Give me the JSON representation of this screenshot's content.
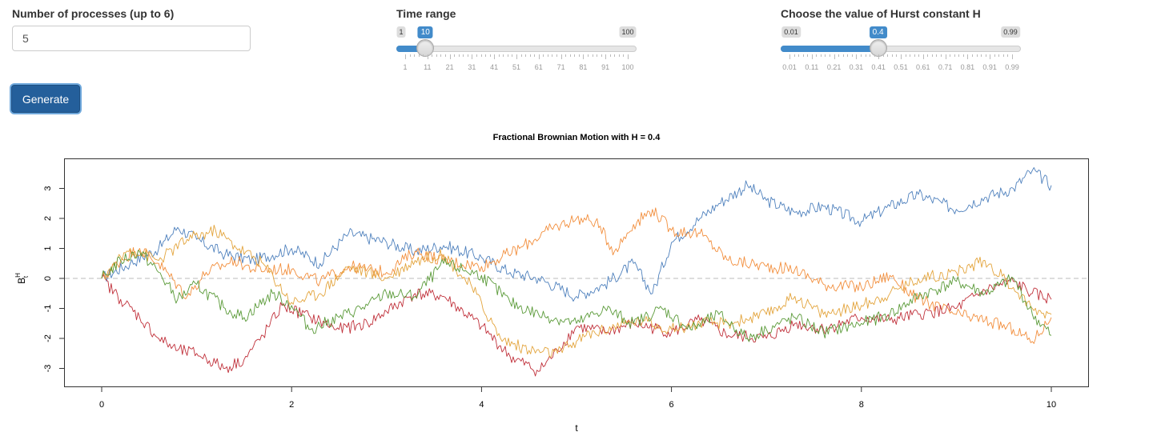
{
  "controls": {
    "processes": {
      "label": "Number of processes (up to 6)",
      "value": "5"
    },
    "time_range": {
      "label": "Time range",
      "min": 1,
      "max": 100,
      "value": 10,
      "min_label": "1",
      "max_label": "100",
      "value_label": "10",
      "ticks": [
        "1",
        "11",
        "21",
        "31",
        "41",
        "51",
        "61",
        "71",
        "81",
        "91",
        "100"
      ]
    },
    "hurst": {
      "label": "Choose the value of Hurst constant H",
      "min": 0.01,
      "max": 0.99,
      "value": 0.4,
      "min_label": "0.01",
      "max_label": "0.99",
      "value_label": "0.4",
      "ticks": [
        "0.01",
        "0.11",
        "0.21",
        "0.31",
        "0.41",
        "0.51",
        "0.61",
        "0.71",
        "0.81",
        "0.91",
        "0.99"
      ]
    },
    "generate_label": "Generate",
    "accent": "#428bca"
  },
  "chart_data": {
    "type": "line",
    "title": "Fractional Brownian Motion with H = 0.4",
    "xlabel": "t",
    "ylabel": "B",
    "xlim": [
      0,
      10
    ],
    "ylim": [
      -3.6,
      4.0
    ],
    "xticks": [
      0,
      2,
      4,
      6,
      8,
      10
    ],
    "yticks": [
      -3,
      -2,
      -1,
      0,
      1,
      2,
      3
    ],
    "reference_line": 0,
    "series": [
      {
        "color": "#4f81bd",
        "x": [
          0,
          0.3,
          0.6,
          0.8,
          1.0,
          1.3,
          1.6,
          2.0,
          2.3,
          2.6,
          3.0,
          3.3,
          3.6,
          4.0,
          4.3,
          4.6,
          5.0,
          5.3,
          5.6,
          5.8,
          6.0,
          6.3,
          6.5,
          6.8,
          7.0,
          7.3,
          7.6,
          8.0,
          8.3,
          8.6,
          9.0,
          9.3,
          9.6,
          9.8,
          10.0
        ],
        "y": [
          0.0,
          0.5,
          1.0,
          1.7,
          1.3,
          0.8,
          0.6,
          1.0,
          0.5,
          1.5,
          1.2,
          0.9,
          1.1,
          0.7,
          0.2,
          0.0,
          -0.6,
          -0.2,
          0.5,
          -0.5,
          1.2,
          2.0,
          2.5,
          3.1,
          2.6,
          2.2,
          2.4,
          1.9,
          2.4,
          2.8,
          2.3,
          2.7,
          3.0,
          3.6,
          3.1
        ]
      },
      {
        "color": "#f28e3c",
        "x": [
          0,
          0.2,
          0.4,
          0.6,
          0.9,
          1.1,
          1.4,
          1.6,
          2.0,
          2.3,
          2.6,
          3.0,
          3.3,
          3.6,
          4.0,
          4.4,
          4.7,
          5.0,
          5.2,
          5.4,
          5.6,
          5.8,
          6.0,
          6.3,
          6.6,
          7.0,
          7.3,
          7.6,
          8.0,
          8.3,
          8.6,
          9.0,
          9.3,
          9.6,
          9.8,
          10.0
        ],
        "y": [
          0.0,
          0.6,
          1.0,
          0.5,
          -0.6,
          0.2,
          0.6,
          0.3,
          0.3,
          -0.1,
          0.4,
          0.2,
          0.9,
          0.6,
          0.4,
          1.0,
          1.6,
          2.0,
          1.9,
          0.9,
          1.8,
          2.3,
          1.6,
          1.5,
          0.6,
          0.4,
          0.3,
          -0.2,
          -0.3,
          0.1,
          -0.7,
          -1.2,
          -1.4,
          -1.7,
          -2.1,
          -1.3
        ]
      },
      {
        "color": "#c0303a",
        "x": [
          0,
          0.2,
          0.4,
          0.6,
          0.8,
          1.0,
          1.3,
          1.5,
          1.7,
          1.9,
          2.2,
          2.5,
          2.8,
          3.0,
          3.3,
          3.6,
          4.0,
          4.3,
          4.6,
          4.8,
          5.0,
          5.3,
          5.6,
          6.0,
          6.3,
          6.6,
          7.0,
          7.3,
          7.6,
          8.0,
          8.3,
          8.6,
          9.0,
          9.3,
          9.6,
          9.8,
          10.0
        ],
        "y": [
          0.0,
          -0.7,
          -1.3,
          -2.0,
          -2.4,
          -2.5,
          -3.0,
          -2.7,
          -1.9,
          -0.9,
          -1.3,
          -1.7,
          -1.5,
          -1.1,
          -0.5,
          -0.6,
          -1.6,
          -2.6,
          -3.1,
          -2.4,
          -1.6,
          -1.8,
          -1.5,
          -1.8,
          -1.4,
          -1.9,
          -2.0,
          -1.5,
          -1.7,
          -1.3,
          -1.4,
          -1.2,
          -1.0,
          -0.4,
          -0.1,
          -0.5,
          -0.7
        ]
      },
      {
        "color": "#e3a43c",
        "x": [
          0,
          0.3,
          0.6,
          0.9,
          1.2,
          1.4,
          1.7,
          2.0,
          2.3,
          2.6,
          3.0,
          3.3,
          3.6,
          3.9,
          4.2,
          4.5,
          4.8,
          5.1,
          5.4,
          5.7,
          6.0,
          6.3,
          6.6,
          7.0,
          7.3,
          7.6,
          8.0,
          8.3,
          8.6,
          9.0,
          9.3,
          9.6,
          9.8,
          10.0
        ],
        "y": [
          0.0,
          1.0,
          0.6,
          1.3,
          1.6,
          1.1,
          0.5,
          -0.8,
          -0.5,
          0.4,
          0.0,
          0.6,
          0.8,
          -0.3,
          -2.0,
          -2.4,
          -2.5,
          -1.9,
          -1.6,
          -1.4,
          -1.7,
          -1.5,
          -1.5,
          -1.2,
          -0.6,
          -1.2,
          -0.9,
          -0.5,
          0.0,
          0.2,
          0.6,
          -0.3,
          -1.0,
          -1.2
        ]
      },
      {
        "color": "#5a9a38",
        "x": [
          0,
          0.2,
          0.4,
          0.6,
          0.8,
          1.0,
          1.3,
          1.5,
          1.8,
          2.0,
          2.2,
          2.5,
          2.8,
          3.0,
          3.3,
          3.6,
          4.0,
          4.3,
          4.6,
          5.0,
          5.3,
          5.6,
          5.9,
          6.2,
          6.5,
          6.8,
          7.0,
          7.3,
          7.6,
          8.0,
          8.3,
          8.6,
          9.0,
          9.3,
          9.6,
          9.8,
          10.0
        ],
        "y": [
          0.0,
          0.6,
          0.9,
          0.2,
          -0.7,
          -0.2,
          -1.0,
          -1.3,
          -0.5,
          -0.9,
          -1.7,
          -1.3,
          -0.9,
          -0.5,
          -0.6,
          0.5,
          0.1,
          -0.8,
          -1.2,
          -1.5,
          -1.0,
          -1.5,
          -1.0,
          -1.7,
          -1.2,
          -2.0,
          -1.7,
          -1.3,
          -1.8,
          -1.5,
          -1.2,
          -0.6,
          -0.1,
          -0.5,
          0.0,
          -1.2,
          -1.9
        ]
      }
    ]
  }
}
